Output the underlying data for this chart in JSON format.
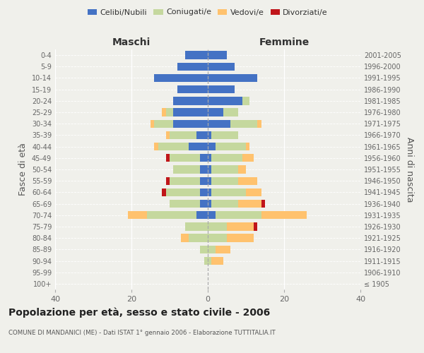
{
  "age_groups": [
    "100+",
    "95-99",
    "90-94",
    "85-89",
    "80-84",
    "75-79",
    "70-74",
    "65-69",
    "60-64",
    "55-59",
    "50-54",
    "45-49",
    "40-44",
    "35-39",
    "30-34",
    "25-29",
    "20-24",
    "15-19",
    "10-14",
    "5-9",
    "0-4"
  ],
  "birth_years": [
    "≤ 1905",
    "1906-1910",
    "1911-1915",
    "1916-1920",
    "1921-1925",
    "1926-1930",
    "1931-1935",
    "1936-1940",
    "1941-1945",
    "1946-1950",
    "1951-1955",
    "1956-1960",
    "1961-1965",
    "1966-1970",
    "1971-1975",
    "1976-1980",
    "1981-1985",
    "1986-1990",
    "1991-1995",
    "1996-2000",
    "2001-2005"
  ],
  "maschi": {
    "celibi": [
      0,
      0,
      0,
      0,
      0,
      0,
      3,
      2,
      2,
      2,
      2,
      2,
      5,
      3,
      9,
      9,
      9,
      8,
      14,
      8,
      6
    ],
    "coniugati": [
      0,
      0,
      1,
      2,
      5,
      6,
      13,
      8,
      9,
      8,
      7,
      8,
      8,
      7,
      5,
      2,
      0,
      0,
      0,
      0,
      0
    ],
    "vedovi": [
      0,
      0,
      0,
      0,
      2,
      0,
      5,
      0,
      0,
      0,
      0,
      0,
      1,
      1,
      1,
      1,
      0,
      0,
      0,
      0,
      0
    ],
    "divorziati": [
      0,
      0,
      0,
      0,
      0,
      0,
      0,
      0,
      1,
      1,
      0,
      1,
      0,
      0,
      0,
      0,
      0,
      0,
      0,
      0,
      0
    ]
  },
  "femmine": {
    "nubili": [
      0,
      0,
      0,
      0,
      0,
      0,
      2,
      1,
      1,
      1,
      1,
      1,
      2,
      1,
      6,
      4,
      9,
      7,
      13,
      7,
      5
    ],
    "coniugate": [
      0,
      0,
      1,
      2,
      5,
      5,
      12,
      7,
      9,
      7,
      7,
      8,
      8,
      7,
      7,
      4,
      2,
      0,
      0,
      0,
      0
    ],
    "vedove": [
      0,
      0,
      3,
      4,
      7,
      7,
      12,
      6,
      4,
      5,
      2,
      3,
      1,
      0,
      1,
      0,
      0,
      0,
      0,
      0,
      0
    ],
    "divorziate": [
      0,
      0,
      0,
      0,
      0,
      1,
      0,
      1,
      0,
      0,
      0,
      0,
      0,
      0,
      0,
      0,
      0,
      0,
      0,
      0,
      0
    ]
  },
  "colors": {
    "celibi": "#4472c4",
    "coniugati": "#c5d89e",
    "vedovi": "#ffc26e",
    "divorziati": "#c0151a"
  },
  "xlim": 40,
  "title": "Popolazione per età, sesso e stato civile - 2006",
  "subtitle": "COMUNE DI MANDANICI (ME) - Dati ISTAT 1° gennaio 2006 - Elaborazione TUTTITALIA.IT",
  "ylabel_left": "Fasce di età",
  "ylabel_right": "Anni di nascita",
  "xlabel_maschi": "Maschi",
  "xlabel_femmine": "Femmine",
  "bg_color": "#f0f0eb",
  "legend_labels": [
    "Celibi/Nubili",
    "Coniugati/e",
    "Vedovi/e",
    "Divorziati/e"
  ]
}
